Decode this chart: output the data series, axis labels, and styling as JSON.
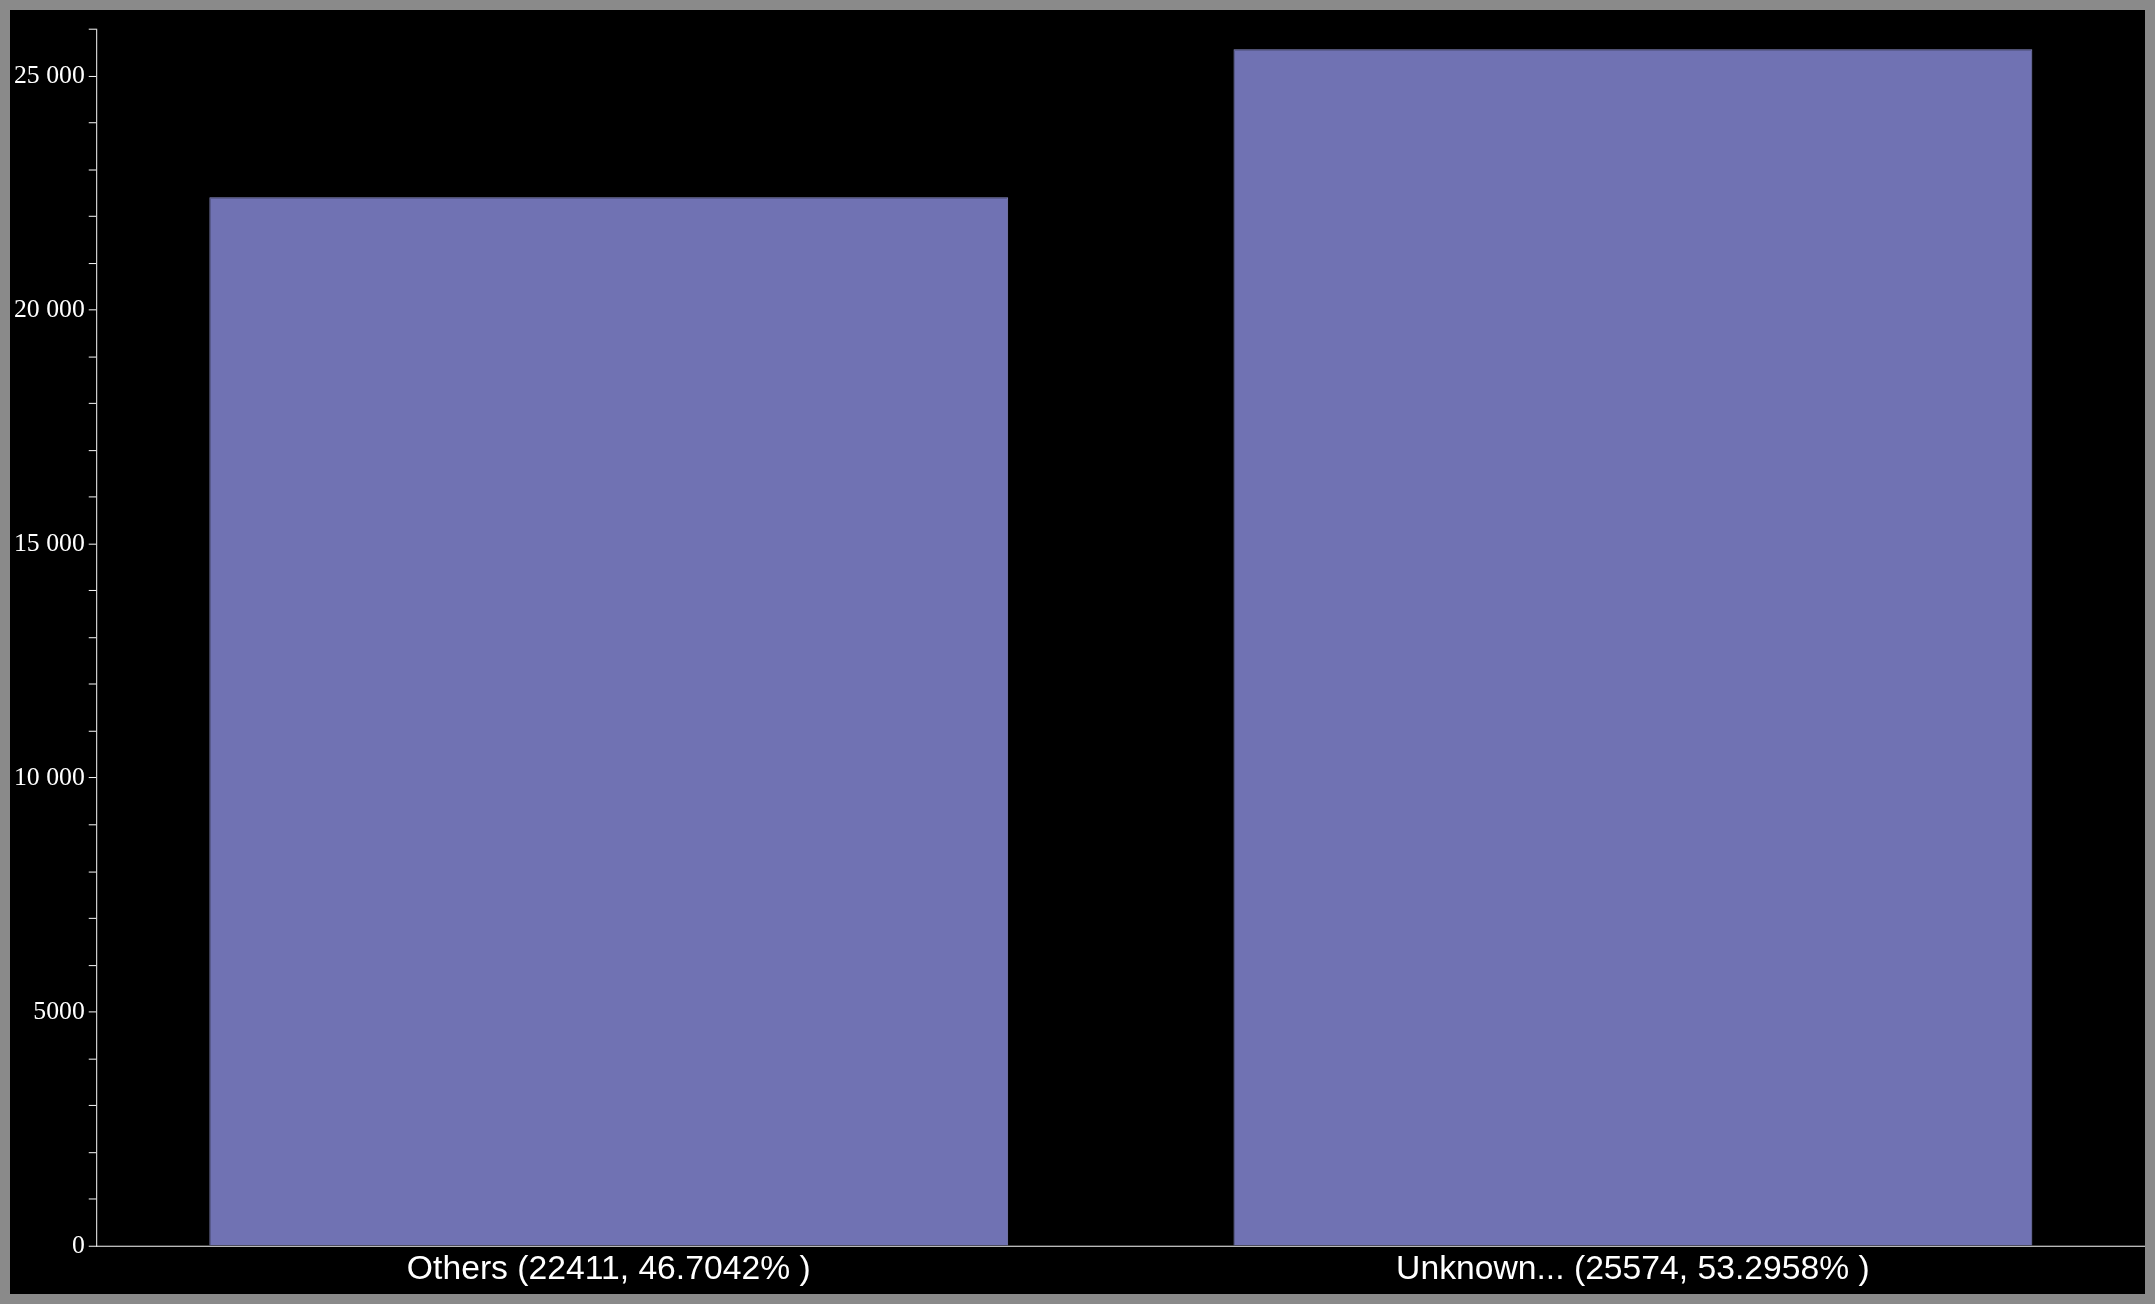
{
  "chart_data": {
    "type": "bar",
    "categories": [
      "Others (22411, 46.7042% )",
      "Unknown... (25574, 53.2958% )"
    ],
    "values": [
      22411,
      25574
    ],
    "color": "#7072b3",
    "ylim": [
      0,
      26000
    ],
    "yticks": [
      0,
      {
        "value": 1000,
        "label": null
      },
      {
        "value": 2000,
        "label": null
      },
      {
        "value": 3000,
        "label": null
      },
      {
        "value": 4000,
        "label": null
      },
      5000,
      {
        "value": 6000,
        "label": null
      },
      {
        "value": 7000,
        "label": null
      },
      {
        "value": 8000,
        "label": null
      },
      {
        "value": 9000,
        "label": null
      },
      {
        "value": 10000,
        "label": "10 000"
      },
      {
        "value": 11000,
        "label": null
      },
      {
        "value": 12000,
        "label": null
      },
      {
        "value": 13000,
        "label": null
      },
      {
        "value": 14000,
        "label": null
      },
      {
        "value": 15000,
        "label": "15 000"
      },
      {
        "value": 16000,
        "label": null
      },
      {
        "value": 17000,
        "label": null
      },
      {
        "value": 18000,
        "label": null
      },
      {
        "value": 19000,
        "label": null
      },
      {
        "value": 20000,
        "label": "20 000"
      },
      {
        "value": 21000,
        "label": null
      },
      {
        "value": 22000,
        "label": null
      },
      {
        "value": 23000,
        "label": null
      },
      {
        "value": 24000,
        "label": null
      },
      {
        "value": 25000,
        "label": "25 000"
      },
      {
        "value": 26000,
        "label": null
      }
    ],
    "grid": false
  }
}
